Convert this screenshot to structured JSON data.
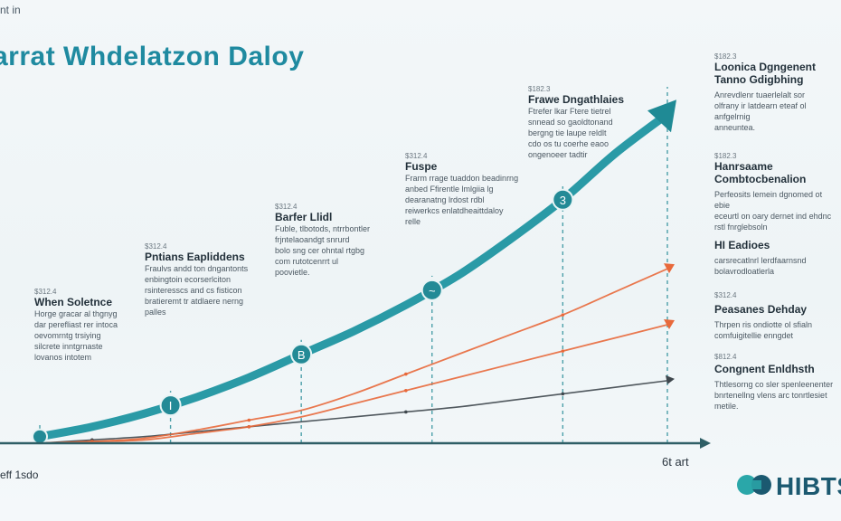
{
  "header": {
    "top_label": "nt in",
    "title": "arrat Whdelatzon Daloy"
  },
  "annotations": [
    {
      "num": "$312.4",
      "title": "When Soletnce",
      "body": "Horge gracar al thgnyg\ndar perefliast rer intoca\noevomrntg trsiying\nsilcrete inntgrnaste\nlovanos intotem"
    },
    {
      "num": "$312.4",
      "title": "Pntians Eapliddens",
      "body": "Fraulvs andd ton dngantonts\nenbingtoin ecorserlciton\nrsinteresscs and cs fisticon\nbratieremt tr atdlaere nerng\npalles"
    },
    {
      "num": "$312.4",
      "title": "Barfer Llidl",
      "body": "Fuble, tlbotods, ntrrbontler\nfrjntelaoandgt snrurd\nbolo sng cer ohntal rtgbg\ncom rutotcenrrt ul\npoovietle."
    },
    {
      "num": "$312.4",
      "title": "Fuspe",
      "body": "Frarm rrage tuaddon beadinrng\nanbed Ffirentle lmlgiia lg\ndearanatng lrdost rdbl\nreiwerkcs enlatdheaittdaloy\nrelle"
    },
    {
      "num": "$182.3",
      "title": "Frawe Dngathlaies",
      "body": "Ftrefer lkar Ftere tietrel\nsnnead so gaoldtonand\nbergng tie laupe reldlt\ncdo os tu coerhe eaoo\nongenoeer tadtir"
    },
    {
      "num": "$182.3",
      "title": "Loonica Dgngenent\nTanno Gdigbhing",
      "body": "Anrevdlenr tuaerlelalt sor\nolfrany ir latdearn eteaf ol anfgelrnig\nanneuntea."
    },
    {
      "num": "$182.3",
      "title": "Hanrsaame\nCombtocbenalion",
      "body": "Perfeosits lemein dgnomed ot ebie\neceurtl on oary dernet ind ehdnc\nrstl fnrglebsoln"
    },
    {
      "num": "",
      "title": "HI Eadioes",
      "body": "carsrecatlnrl lerdfaarnsnd\nbolavrodloatlerla"
    },
    {
      "num": "$312.4",
      "title": "Peasanes Dehday",
      "body": "Thrpen ris ondiotte ol sfialn\ncomfuigitellie enngdet"
    },
    {
      "num": "$812.4",
      "title": "Congnent Enldhsth",
      "body": "Thtlesorng co sler spenleenenter\nbnrtenellng vlens arc tonrtlesiet\nmetile."
    }
  ],
  "axis": {
    "x_left_label": "eff 1sdo",
    "x_right_label": "6t art"
  },
  "logo": {
    "text": "HIBTS"
  },
  "colors": {
    "main_curve": "#2a9aa6",
    "marker_fill": "#238a96",
    "orange": "#e8693b",
    "dark_line": "#3e474d",
    "axis": "#2f5f66",
    "title": "#1f8aa0"
  },
  "chart_data": {
    "type": "line",
    "x": [
      0,
      1,
      2,
      3,
      4,
      5,
      6,
      7,
      8,
      9,
      10,
      11,
      12
    ],
    "series": [
      {
        "values": [
          0.2,
          0.5,
          0.9,
          1.4,
          2.0,
          2.7,
          3.4,
          4.2,
          5.1,
          6.2,
          7.4,
          8.8,
          10.0
        ]
      },
      {
        "values": [
          0.0,
          0.05,
          0.15,
          0.4,
          0.7,
          1.0,
          1.5,
          2.1,
          2.7,
          3.3,
          3.9,
          4.6,
          5.3
        ]
      },
      {
        "values": [
          0.0,
          0.05,
          0.1,
          0.3,
          0.5,
          0.8,
          1.2,
          1.6,
          2.0,
          2.4,
          2.8,
          3.2,
          3.6
        ]
      },
      {
        "values": [
          0.0,
          0.1,
          0.2,
          0.35,
          0.5,
          0.65,
          0.8,
          0.95,
          1.1,
          1.3,
          1.5,
          1.7,
          1.9
        ]
      }
    ],
    "markers": [
      {
        "x": 0,
        "label": ""
      },
      {
        "x": 2.5,
        "label": "I"
      },
      {
        "x": 5,
        "label": "B"
      },
      {
        "x": 7.5,
        "label": "~"
      },
      {
        "x": 10,
        "label": "3"
      }
    ],
    "ylim": [
      0,
      10.5
    ]
  }
}
